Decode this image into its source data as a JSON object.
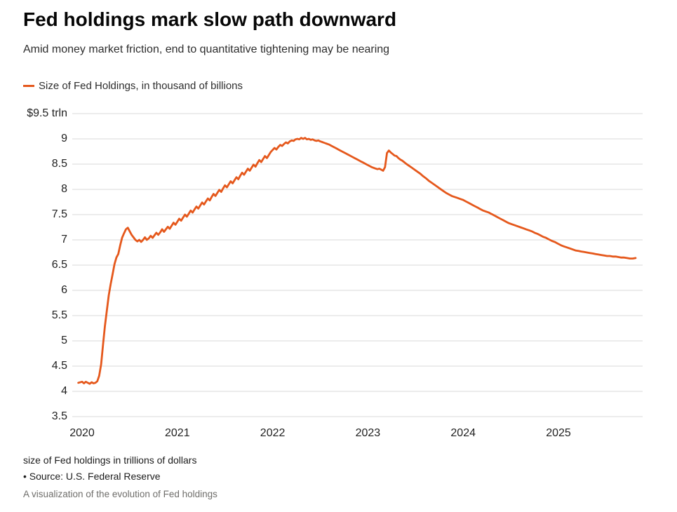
{
  "header": {
    "title": "Fed holdings mark slow path downward",
    "subtitle": "Amid money market friction, end to quantitative tightening may be nearing"
  },
  "legend": {
    "label": "Size of Fed Holdings, in thousand of billions",
    "color": "#e5581c"
  },
  "footer": {
    "note": "size of Fed holdings in trillions of dollars",
    "source": "• Source: U.S. Federal Reserve",
    "caption": "A visualization of the evolution of Fed holdings"
  },
  "chart_data": {
    "type": "line",
    "title": "Fed holdings mark slow path downward",
    "subtitle": "Amid money market friction, end to quantitative tightening may be nearing",
    "xlabel": "",
    "ylabel": "",
    "grid": "horizontal",
    "grid_color": "#d8d8d8",
    "legend_position": "top-left",
    "xlim": [
      2019.96,
      2025.85
    ],
    "ylim": [
      3.5,
      9.5
    ],
    "x_ticks": [
      2020,
      2021,
      2022,
      2023,
      2024,
      2025
    ],
    "y_ticks": [
      {
        "value": 9.5,
        "label": "$9.5 trln"
      },
      {
        "value": 9.0,
        "label": "9"
      },
      {
        "value": 8.5,
        "label": "8.5"
      },
      {
        "value": 8.0,
        "label": "8"
      },
      {
        "value": 7.5,
        "label": "7.5"
      },
      {
        "value": 7.0,
        "label": "7"
      },
      {
        "value": 6.5,
        "label": "6.5"
      },
      {
        "value": 6.0,
        "label": "6"
      },
      {
        "value": 5.5,
        "label": "5.5"
      },
      {
        "value": 5.0,
        "label": "5"
      },
      {
        "value": 4.5,
        "label": "4.5"
      },
      {
        "value": 4.0,
        "label": "4"
      },
      {
        "value": 3.5,
        "label": "3.5"
      }
    ],
    "series": [
      {
        "name": "Size of Fed Holdings, in thousand of billions",
        "color": "#e5581c",
        "units": "trillions of dollars",
        "points": [
          [
            2019.96,
            4.17
          ],
          [
            2020.0,
            4.19
          ],
          [
            2020.02,
            4.16
          ],
          [
            2020.04,
            4.19
          ],
          [
            2020.06,
            4.17
          ],
          [
            2020.08,
            4.15
          ],
          [
            2020.1,
            4.18
          ],
          [
            2020.12,
            4.16
          ],
          [
            2020.14,
            4.17
          ],
          [
            2020.16,
            4.2
          ],
          [
            2020.18,
            4.31
          ],
          [
            2020.2,
            4.54
          ],
          [
            2020.22,
            4.93
          ],
          [
            2020.24,
            5.3
          ],
          [
            2020.26,
            5.6
          ],
          [
            2020.28,
            5.9
          ],
          [
            2020.3,
            6.12
          ],
          [
            2020.32,
            6.32
          ],
          [
            2020.34,
            6.52
          ],
          [
            2020.36,
            6.65
          ],
          [
            2020.38,
            6.72
          ],
          [
            2020.4,
            6.89
          ],
          [
            2020.42,
            7.04
          ],
          [
            2020.44,
            7.13
          ],
          [
            2020.46,
            7.21
          ],
          [
            2020.48,
            7.24
          ],
          [
            2020.5,
            7.17
          ],
          [
            2020.52,
            7.1
          ],
          [
            2020.54,
            7.05
          ],
          [
            2020.56,
            7.0
          ],
          [
            2020.58,
            6.97
          ],
          [
            2020.6,
            7.0
          ],
          [
            2020.62,
            6.96
          ],
          [
            2020.64,
            7.0
          ],
          [
            2020.66,
            7.05
          ],
          [
            2020.68,
            7.0
          ],
          [
            2020.7,
            7.03
          ],
          [
            2020.72,
            7.08
          ],
          [
            2020.74,
            7.04
          ],
          [
            2020.76,
            7.09
          ],
          [
            2020.78,
            7.14
          ],
          [
            2020.8,
            7.1
          ],
          [
            2020.82,
            7.15
          ],
          [
            2020.84,
            7.21
          ],
          [
            2020.86,
            7.16
          ],
          [
            2020.88,
            7.21
          ],
          [
            2020.9,
            7.26
          ],
          [
            2020.92,
            7.22
          ],
          [
            2020.94,
            7.28
          ],
          [
            2020.96,
            7.34
          ],
          [
            2020.98,
            7.3
          ],
          [
            2021.0,
            7.36
          ],
          [
            2021.02,
            7.42
          ],
          [
            2021.04,
            7.38
          ],
          [
            2021.06,
            7.44
          ],
          [
            2021.08,
            7.5
          ],
          [
            2021.1,
            7.46
          ],
          [
            2021.12,
            7.52
          ],
          [
            2021.14,
            7.58
          ],
          [
            2021.16,
            7.54
          ],
          [
            2021.18,
            7.6
          ],
          [
            2021.2,
            7.66
          ],
          [
            2021.22,
            7.62
          ],
          [
            2021.24,
            7.68
          ],
          [
            2021.26,
            7.74
          ],
          [
            2021.28,
            7.7
          ],
          [
            2021.3,
            7.76
          ],
          [
            2021.32,
            7.82
          ],
          [
            2021.34,
            7.78
          ],
          [
            2021.36,
            7.85
          ],
          [
            2021.38,
            7.91
          ],
          [
            2021.4,
            7.87
          ],
          [
            2021.42,
            7.93
          ],
          [
            2021.44,
            7.99
          ],
          [
            2021.46,
            7.95
          ],
          [
            2021.48,
            8.02
          ],
          [
            2021.5,
            8.08
          ],
          [
            2021.52,
            8.04
          ],
          [
            2021.54,
            8.1
          ],
          [
            2021.56,
            8.16
          ],
          [
            2021.58,
            8.12
          ],
          [
            2021.6,
            8.18
          ],
          [
            2021.62,
            8.24
          ],
          [
            2021.64,
            8.2
          ],
          [
            2021.66,
            8.27
          ],
          [
            2021.68,
            8.33
          ],
          [
            2021.7,
            8.29
          ],
          [
            2021.72,
            8.35
          ],
          [
            2021.74,
            8.41
          ],
          [
            2021.76,
            8.37
          ],
          [
            2021.78,
            8.43
          ],
          [
            2021.8,
            8.49
          ],
          [
            2021.82,
            8.45
          ],
          [
            2021.84,
            8.52
          ],
          [
            2021.86,
            8.58
          ],
          [
            2021.88,
            8.54
          ],
          [
            2021.9,
            8.6
          ],
          [
            2021.92,
            8.66
          ],
          [
            2021.94,
            8.62
          ],
          [
            2021.96,
            8.68
          ],
          [
            2021.98,
            8.74
          ],
          [
            2022.0,
            8.78
          ],
          [
            2022.02,
            8.82
          ],
          [
            2022.04,
            8.79
          ],
          [
            2022.06,
            8.84
          ],
          [
            2022.08,
            8.88
          ],
          [
            2022.1,
            8.86
          ],
          [
            2022.12,
            8.9
          ],
          [
            2022.14,
            8.93
          ],
          [
            2022.16,
            8.91
          ],
          [
            2022.18,
            8.95
          ],
          [
            2022.2,
            8.97
          ],
          [
            2022.22,
            8.96
          ],
          [
            2022.24,
            8.99
          ],
          [
            2022.26,
            9.0
          ],
          [
            2022.28,
            8.99
          ],
          [
            2022.3,
            9.02
          ],
          [
            2022.32,
            9.0
          ],
          [
            2022.34,
            9.02
          ],
          [
            2022.36,
            8.99
          ],
          [
            2022.38,
            9.0
          ],
          [
            2022.4,
            8.98
          ],
          [
            2022.42,
            8.99
          ],
          [
            2022.44,
            8.97
          ],
          [
            2022.46,
            8.96
          ],
          [
            2022.48,
            8.97
          ],
          [
            2022.5,
            8.95
          ],
          [
            2022.53,
            8.93
          ],
          [
            2022.56,
            8.91
          ],
          [
            2022.59,
            8.89
          ],
          [
            2022.62,
            8.86
          ],
          [
            2022.65,
            8.83
          ],
          [
            2022.68,
            8.8
          ],
          [
            2022.71,
            8.77
          ],
          [
            2022.74,
            8.74
          ],
          [
            2022.77,
            8.71
          ],
          [
            2022.8,
            8.68
          ],
          [
            2022.83,
            8.65
          ],
          [
            2022.86,
            8.62
          ],
          [
            2022.89,
            8.59
          ],
          [
            2022.92,
            8.56
          ],
          [
            2022.95,
            8.53
          ],
          [
            2022.98,
            8.5
          ],
          [
            2023.01,
            8.47
          ],
          [
            2023.04,
            8.44
          ],
          [
            2023.07,
            8.42
          ],
          [
            2023.1,
            8.4
          ],
          [
            2023.12,
            8.41
          ],
          [
            2023.14,
            8.39
          ],
          [
            2023.16,
            8.37
          ],
          [
            2023.18,
            8.44
          ],
          [
            2023.2,
            8.72
          ],
          [
            2023.22,
            8.77
          ],
          [
            2023.24,
            8.73
          ],
          [
            2023.26,
            8.7
          ],
          [
            2023.28,
            8.67
          ],
          [
            2023.3,
            8.66
          ],
          [
            2023.32,
            8.62
          ],
          [
            2023.34,
            8.59
          ],
          [
            2023.36,
            8.57
          ],
          [
            2023.38,
            8.54
          ],
          [
            2023.4,
            8.51
          ],
          [
            2023.43,
            8.47
          ],
          [
            2023.46,
            8.43
          ],
          [
            2023.49,
            8.39
          ],
          [
            2023.52,
            8.35
          ],
          [
            2023.55,
            8.31
          ],
          [
            2023.58,
            8.26
          ],
          [
            2023.61,
            8.22
          ],
          [
            2023.64,
            8.17
          ],
          [
            2023.67,
            8.13
          ],
          [
            2023.7,
            8.09
          ],
          [
            2023.73,
            8.05
          ],
          [
            2023.76,
            8.01
          ],
          [
            2023.79,
            7.97
          ],
          [
            2023.82,
            7.93
          ],
          [
            2023.85,
            7.9
          ],
          [
            2023.88,
            7.87
          ],
          [
            2023.91,
            7.85
          ],
          [
            2023.94,
            7.83
          ],
          [
            2023.97,
            7.81
          ],
          [
            2024.0,
            7.79
          ],
          [
            2024.03,
            7.76
          ],
          [
            2024.06,
            7.73
          ],
          [
            2024.09,
            7.7
          ],
          [
            2024.12,
            7.67
          ],
          [
            2024.15,
            7.64
          ],
          [
            2024.18,
            7.61
          ],
          [
            2024.21,
            7.58
          ],
          [
            2024.24,
            7.56
          ],
          [
            2024.27,
            7.54
          ],
          [
            2024.3,
            7.51
          ],
          [
            2024.33,
            7.48
          ],
          [
            2024.36,
            7.45
          ],
          [
            2024.39,
            7.42
          ],
          [
            2024.42,
            7.39
          ],
          [
            2024.45,
            7.36
          ],
          [
            2024.48,
            7.33
          ],
          [
            2024.51,
            7.31
          ],
          [
            2024.54,
            7.29
          ],
          [
            2024.57,
            7.27
          ],
          [
            2024.6,
            7.25
          ],
          [
            2024.63,
            7.23
          ],
          [
            2024.66,
            7.21
          ],
          [
            2024.69,
            7.19
          ],
          [
            2024.72,
            7.17
          ],
          [
            2024.75,
            7.14
          ],
          [
            2024.78,
            7.12
          ],
          [
            2024.81,
            7.09
          ],
          [
            2024.84,
            7.06
          ],
          [
            2024.87,
            7.04
          ],
          [
            2024.9,
            7.01
          ],
          [
            2024.93,
            6.98
          ],
          [
            2024.96,
            6.96
          ],
          [
            2025.0,
            6.92
          ],
          [
            2025.03,
            6.89
          ],
          [
            2025.06,
            6.87
          ],
          [
            2025.09,
            6.85
          ],
          [
            2025.12,
            6.83
          ],
          [
            2025.15,
            6.81
          ],
          [
            2025.18,
            6.79
          ],
          [
            2025.21,
            6.78
          ],
          [
            2025.24,
            6.77
          ],
          [
            2025.27,
            6.76
          ],
          [
            2025.3,
            6.75
          ],
          [
            2025.33,
            6.74
          ],
          [
            2025.36,
            6.73
          ],
          [
            2025.39,
            6.72
          ],
          [
            2025.42,
            6.71
          ],
          [
            2025.45,
            6.7
          ],
          [
            2025.48,
            6.69
          ],
          [
            2025.51,
            6.68
          ],
          [
            2025.54,
            6.68
          ],
          [
            2025.57,
            6.67
          ],
          [
            2025.6,
            6.67
          ],
          [
            2025.63,
            6.66
          ],
          [
            2025.66,
            6.65
          ],
          [
            2025.69,
            6.65
          ],
          [
            2025.72,
            6.64
          ],
          [
            2025.75,
            6.63
          ],
          [
            2025.78,
            6.63
          ],
          [
            2025.81,
            6.64
          ]
        ]
      }
    ]
  }
}
